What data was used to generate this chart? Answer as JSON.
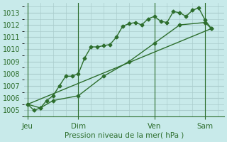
{
  "background_color": "#c8eaea",
  "grid_color": "#aacccc",
  "line_color": "#2d6e2d",
  "marker_color": "#2d6e2d",
  "xlabel": "Pression niveau de la mer( hPa )",
  "ylim": [
    1004.5,
    1013.8
  ],
  "yticks": [
    1005,
    1006,
    1007,
    1008,
    1009,
    1010,
    1011,
    1012,
    1013
  ],
  "xtick_labels": [
    "Jeu",
    "Dim",
    "Ven",
    "Sam"
  ],
  "xtick_positions": [
    0,
    4,
    10,
    14
  ],
  "vline_positions": [
    0,
    4,
    10,
    14
  ],
  "series1_x": [
    0,
    0.5,
    1,
    1.5,
    2,
    2.5,
    3,
    3.5,
    4,
    4.5,
    5,
    5.5,
    6,
    6.5,
    7,
    7.5,
    8,
    8.5,
    9,
    9.5,
    10,
    10.5,
    11,
    11.5,
    12,
    12.5,
    13,
    13.5,
    14,
    14.5
  ],
  "series1_y": [
    1005.5,
    1005.0,
    1005.2,
    1005.8,
    1006.2,
    1007.0,
    1007.8,
    1007.8,
    1008.0,
    1009.3,
    1010.2,
    1010.2,
    1010.3,
    1010.4,
    1011.0,
    1011.9,
    1012.1,
    1012.2,
    1012.0,
    1012.5,
    1012.7,
    1012.3,
    1012.2,
    1013.1,
    1013.0,
    1012.7,
    1013.2,
    1013.4,
    1012.4,
    1011.7
  ],
  "series2_x": [
    0,
    1,
    2,
    4,
    6,
    8,
    10,
    12,
    14,
    14.5
  ],
  "series2_y": [
    1005.5,
    1005.2,
    1005.8,
    1006.2,
    1007.8,
    1009.0,
    1010.5,
    1012.0,
    1012.2,
    1011.7
  ],
  "series3_x": [
    0,
    14.5
  ],
  "series3_y": [
    1005.5,
    1011.7
  ],
  "xlim": [
    -0.3,
    15.5
  ]
}
